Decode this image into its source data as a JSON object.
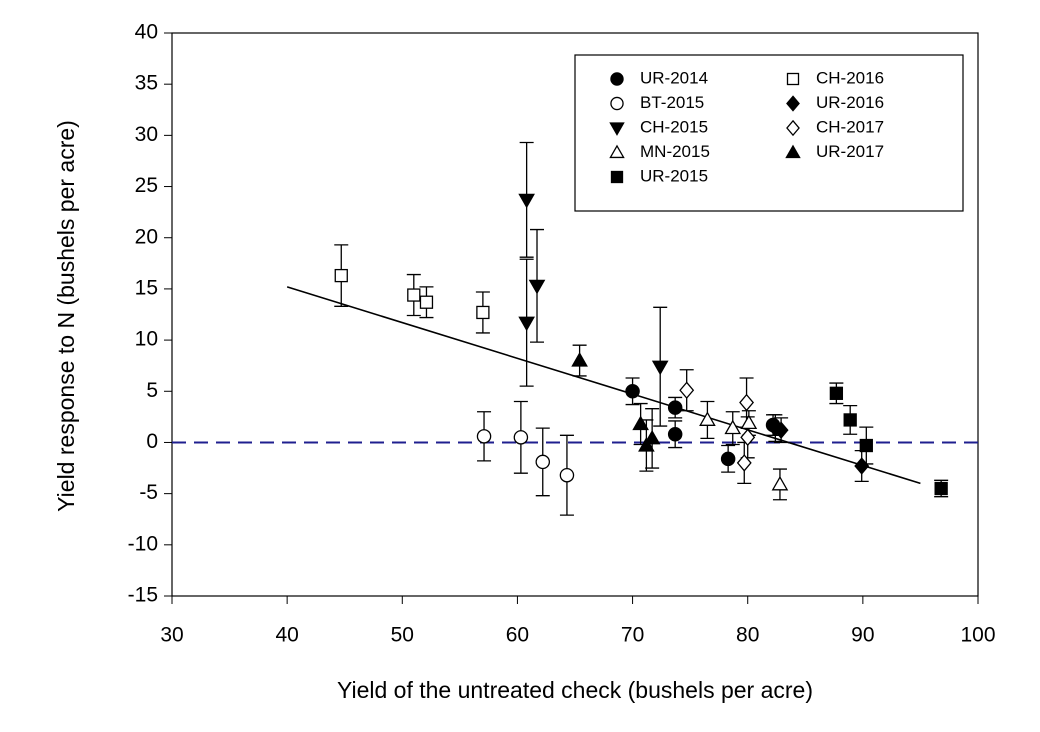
{
  "chart_data": {
    "type": "scatter",
    "xlabel": "Yield of the untreated check (bushels per acre)",
    "ylabel": "Yield response to N (bushels per acre)",
    "xlim": [
      30,
      100
    ],
    "xticks": [
      30,
      40,
      50,
      60,
      70,
      80,
      90,
      100
    ],
    "ylim": [
      -15,
      40
    ],
    "yticks": [
      -15,
      -10,
      -5,
      0,
      5,
      10,
      15,
      20,
      25,
      30,
      35,
      40
    ],
    "legend": "upper right",
    "series": [
      {
        "name": "UR-2014",
        "marker": "circle",
        "filled": true,
        "color": "#000000",
        "x": [
          70.0,
          73.7,
          73.7,
          78.3,
          82.2
        ],
        "values": [
          5.0,
          3.4,
          0.8,
          -1.6,
          1.7
        ],
        "errors": [
          1.3,
          1.0,
          1.3,
          1.3,
          1.0
        ]
      },
      {
        "name": "BT-2015",
        "marker": "circle",
        "filled": false,
        "color": "#000000",
        "x": [
          57.1,
          60.3,
          62.2,
          64.3
        ],
        "values": [
          0.6,
          0.5,
          -1.9,
          -3.2
        ],
        "errors": [
          2.4,
          3.5,
          3.3,
          3.9
        ]
      },
      {
        "name": "CH-2015",
        "marker": "triangle-down",
        "filled": true,
        "color": "#000000",
        "x": [
          60.8,
          60.8,
          61.7,
          72.4
        ],
        "values": [
          23.7,
          11.7,
          15.3,
          7.4
        ],
        "errors": [
          5.6,
          6.2,
          5.5,
          5.8
        ]
      },
      {
        "name": "MN-2015",
        "marker": "triangle-up",
        "filled": false,
        "color": "#000000",
        "x": [
          76.5,
          78.7,
          80.1,
          82.8
        ],
        "values": [
          2.2,
          1.4,
          1.9,
          -4.1
        ],
        "errors": [
          1.8,
          1.6,
          1.2,
          1.5
        ]
      },
      {
        "name": "UR-2015",
        "marker": "square",
        "filled": true,
        "color": "#000000",
        "x": [
          87.7,
          88.9,
          90.3,
          96.8
        ],
        "values": [
          4.8,
          2.2,
          -0.3,
          -4.5
        ],
        "errors": [
          1.0,
          1.4,
          1.8,
          0.8
        ]
      },
      {
        "name": "CH-2016",
        "marker": "square",
        "filled": false,
        "color": "#000000",
        "x": [
          44.7,
          51.0,
          52.1,
          57.0
        ],
        "values": [
          16.3,
          14.4,
          13.7,
          12.7
        ],
        "errors": [
          3.0,
          2.0,
          1.5,
          2.0
        ]
      },
      {
        "name": "UR-2016",
        "marker": "diamond",
        "filled": true,
        "color": "#000000",
        "x": [
          82.4,
          82.9,
          89.9
        ],
        "values": [
          1.4,
          1.2,
          -2.3
        ],
        "errors": [
          1.3,
          1.2,
          1.5
        ]
      },
      {
        "name": "CH-2017",
        "marker": "diamond",
        "filled": false,
        "color": "#000000",
        "x": [
          74.7,
          79.9,
          80.0,
          79.7
        ],
        "values": [
          5.1,
          3.9,
          0.5,
          -2.0
        ],
        "errors": [
          2.0,
          2.4,
          2.0,
          2.0
        ]
      },
      {
        "name": "UR-2017",
        "marker": "triangle-up",
        "filled": true,
        "color": "#000000",
        "x": [
          65.4,
          70.7,
          71.2,
          71.7
        ],
        "values": [
          8.0,
          1.8,
          -0.3,
          0.4
        ],
        "errors": [
          1.5,
          2.0,
          2.5,
          2.9
        ]
      }
    ],
    "trend_line": {
      "x": [
        40,
        95
      ],
      "values": [
        15.2,
        -4.0
      ],
      "color": "#000000"
    },
    "reference_line": {
      "value": 0,
      "color": "#1f1f8f",
      "dashed": true
    }
  }
}
